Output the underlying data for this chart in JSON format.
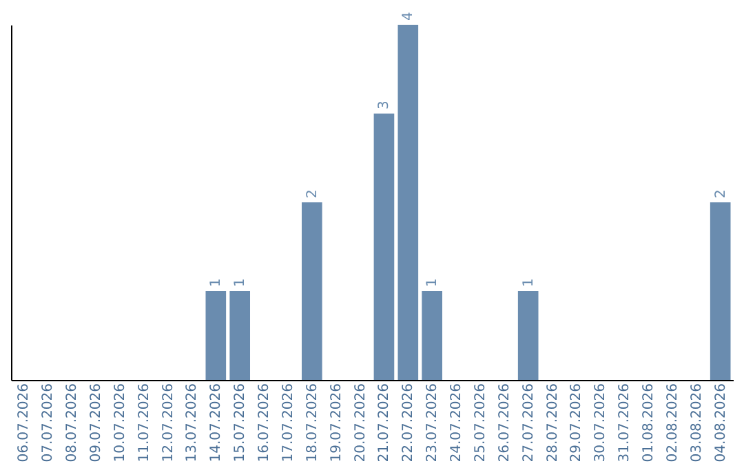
{
  "chart_data": {
    "type": "bar",
    "categories": [
      "06.07.2026",
      "07.07.2026",
      "08.07.2026",
      "09.07.2026",
      "10.07.2026",
      "11.07.2026",
      "12.07.2026",
      "13.07.2026",
      "14.07.2026",
      "15.07.2026",
      "16.07.2026",
      "17.07.2026",
      "18.07.2026",
      "19.07.2026",
      "20.07.2026",
      "21.07.2026",
      "22.07.2026",
      "23.07.2026",
      "24.07.2026",
      "25.07.2026",
      "26.07.2026",
      "27.07.2026",
      "28.07.2026",
      "29.07.2026",
      "30.07.2026",
      "31.07.2026",
      "01.08.2026",
      "02.08.2026",
      "03.08.2026",
      "04.08.2026"
    ],
    "values": [
      0,
      0,
      0,
      0,
      0,
      0,
      0,
      0,
      1,
      1,
      0,
      0,
      2,
      0,
      0,
      3,
      4,
      1,
      0,
      0,
      0,
      1,
      0,
      0,
      0,
      0,
      0,
      0,
      0,
      2
    ],
    "value_labels": [
      null,
      null,
      null,
      null,
      null,
      null,
      null,
      null,
      "1",
      "1",
      null,
      null,
      "2",
      null,
      null,
      "3",
      "4",
      "1",
      null,
      null,
      null,
      "1",
      null,
      null,
      null,
      null,
      null,
      null,
      null,
      "2"
    ],
    "color": "#6a8caf",
    "grid": false
  }
}
